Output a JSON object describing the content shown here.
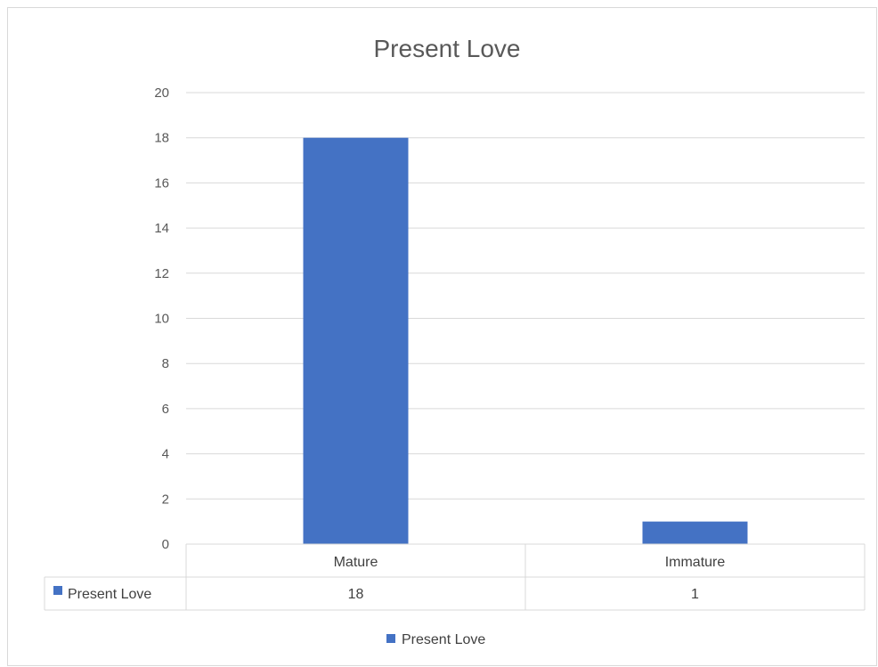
{
  "chart_data": {
    "type": "bar",
    "title": "Present Love",
    "categories": [
      "Mature",
      "Immature"
    ],
    "series": [
      {
        "name": "Present Love",
        "values": [
          18,
          1
        ]
      }
    ],
    "ylim": [
      0,
      20
    ],
    "yticks": [
      0,
      2,
      4,
      6,
      8,
      10,
      12,
      14,
      16,
      18,
      20
    ],
    "grid": true,
    "legend": "bottom",
    "data_table": true,
    "colors": {
      "bar": "#4472C4",
      "grid": "#d9d9d9",
      "text": "#595959"
    }
  }
}
